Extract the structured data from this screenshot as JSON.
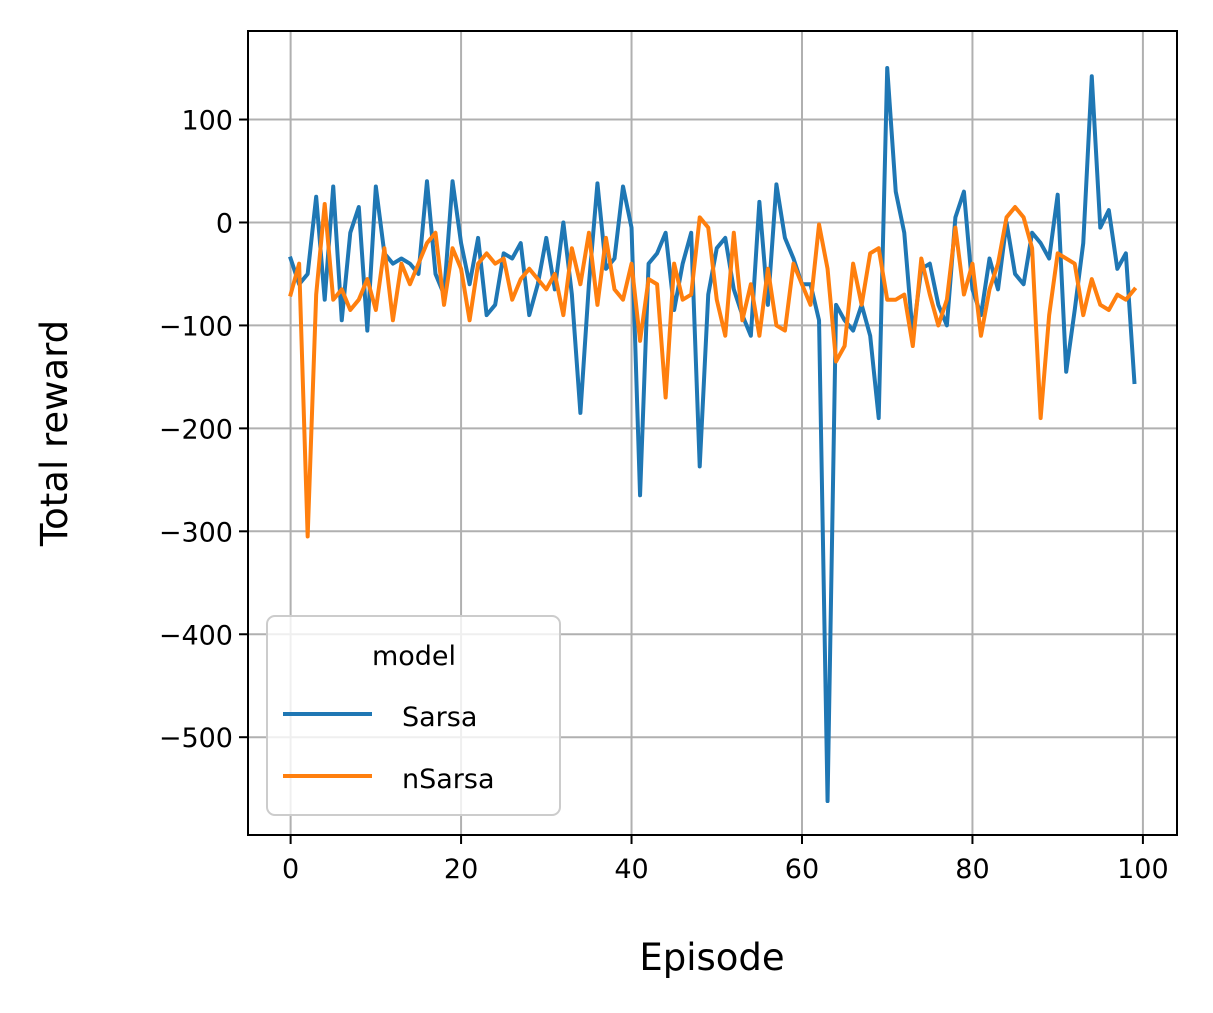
{
  "chart_data": {
    "type": "line",
    "title": "",
    "xlabel": "Episode",
    "ylabel": "Total reward",
    "xlim": [
      -5,
      104
    ],
    "ylim": [
      -595,
      186
    ],
    "grid": true,
    "xticks": [
      0,
      20,
      40,
      60,
      80,
      100
    ],
    "xtick_labels": [
      "0",
      "20",
      "40",
      "60",
      "80",
      "100"
    ],
    "yticks": [
      100,
      0,
      -100,
      -200,
      -300,
      -400,
      -500
    ],
    "ytick_labels": [
      "100",
      "0",
      "−100",
      "−200",
      "−300",
      "−400",
      "−500"
    ],
    "legend": {
      "title": "model",
      "position": "lower-left"
    },
    "series": [
      {
        "name": "Sarsa",
        "color": "#1f77b4",
        "x_start": 0,
        "values": [
          -35,
          -60,
          -50,
          25,
          -75,
          35,
          -95,
          -10,
          15,
          -105,
          35,
          -30,
          -40,
          -35,
          -40,
          -50,
          40,
          -50,
          -70,
          40,
          -20,
          -60,
          -15,
          -90,
          -80,
          -30,
          -35,
          -20,
          -90,
          -60,
          -15,
          -65,
          0,
          -70,
          -185,
          -60,
          38,
          -45,
          -35,
          35,
          -5,
          -265,
          -40,
          -30,
          -10,
          -85,
          -40,
          -10,
          -237,
          -70,
          -25,
          -15,
          -65,
          -90,
          -110,
          20,
          -80,
          37,
          -15,
          -35,
          -60,
          -60,
          -95,
          -562,
          -80,
          -95,
          -105,
          -80,
          -110,
          -190,
          150,
          30,
          -10,
          -110,
          -45,
          -40,
          -80,
          -100,
          5,
          30,
          -65,
          -90,
          -35,
          -65,
          0,
          -50,
          -60,
          -10,
          -20,
          -35,
          27,
          -145,
          -85,
          -20,
          142,
          -5,
          12,
          -45,
          -30,
          -155
        ]
      },
      {
        "name": "nSarsa",
        "color": "#ff7f0e",
        "x_start": 0,
        "values": [
          -70,
          -40,
          -305,
          -70,
          18,
          -75,
          -65,
          -85,
          -75,
          -55,
          -85,
          -25,
          -95,
          -40,
          -60,
          -40,
          -20,
          -10,
          -80,
          -25,
          -45,
          -95,
          -40,
          -30,
          -40,
          -35,
          -75,
          -55,
          -45,
          -55,
          -65,
          -50,
          -90,
          -25,
          -60,
          -10,
          -80,
          -15,
          -65,
          -75,
          -40,
          -115,
          -55,
          -60,
          -170,
          -40,
          -75,
          -70,
          5,
          -5,
          -75,
          -110,
          -10,
          -95,
          -60,
          -110,
          -45,
          -100,
          -105,
          -40,
          -60,
          -80,
          -2,
          -45,
          -135,
          -120,
          -40,
          -80,
          -30,
          -25,
          -75,
          -75,
          -70,
          -120,
          -35,
          -70,
          -100,
          -75,
          -5,
          -70,
          -40,
          -110,
          -65,
          -40,
          5,
          15,
          5,
          -25,
          -190,
          -90,
          -30,
          -35,
          -40,
          -90,
          -55,
          -80,
          -85,
          -70,
          -75,
          -65
        ]
      }
    ]
  }
}
